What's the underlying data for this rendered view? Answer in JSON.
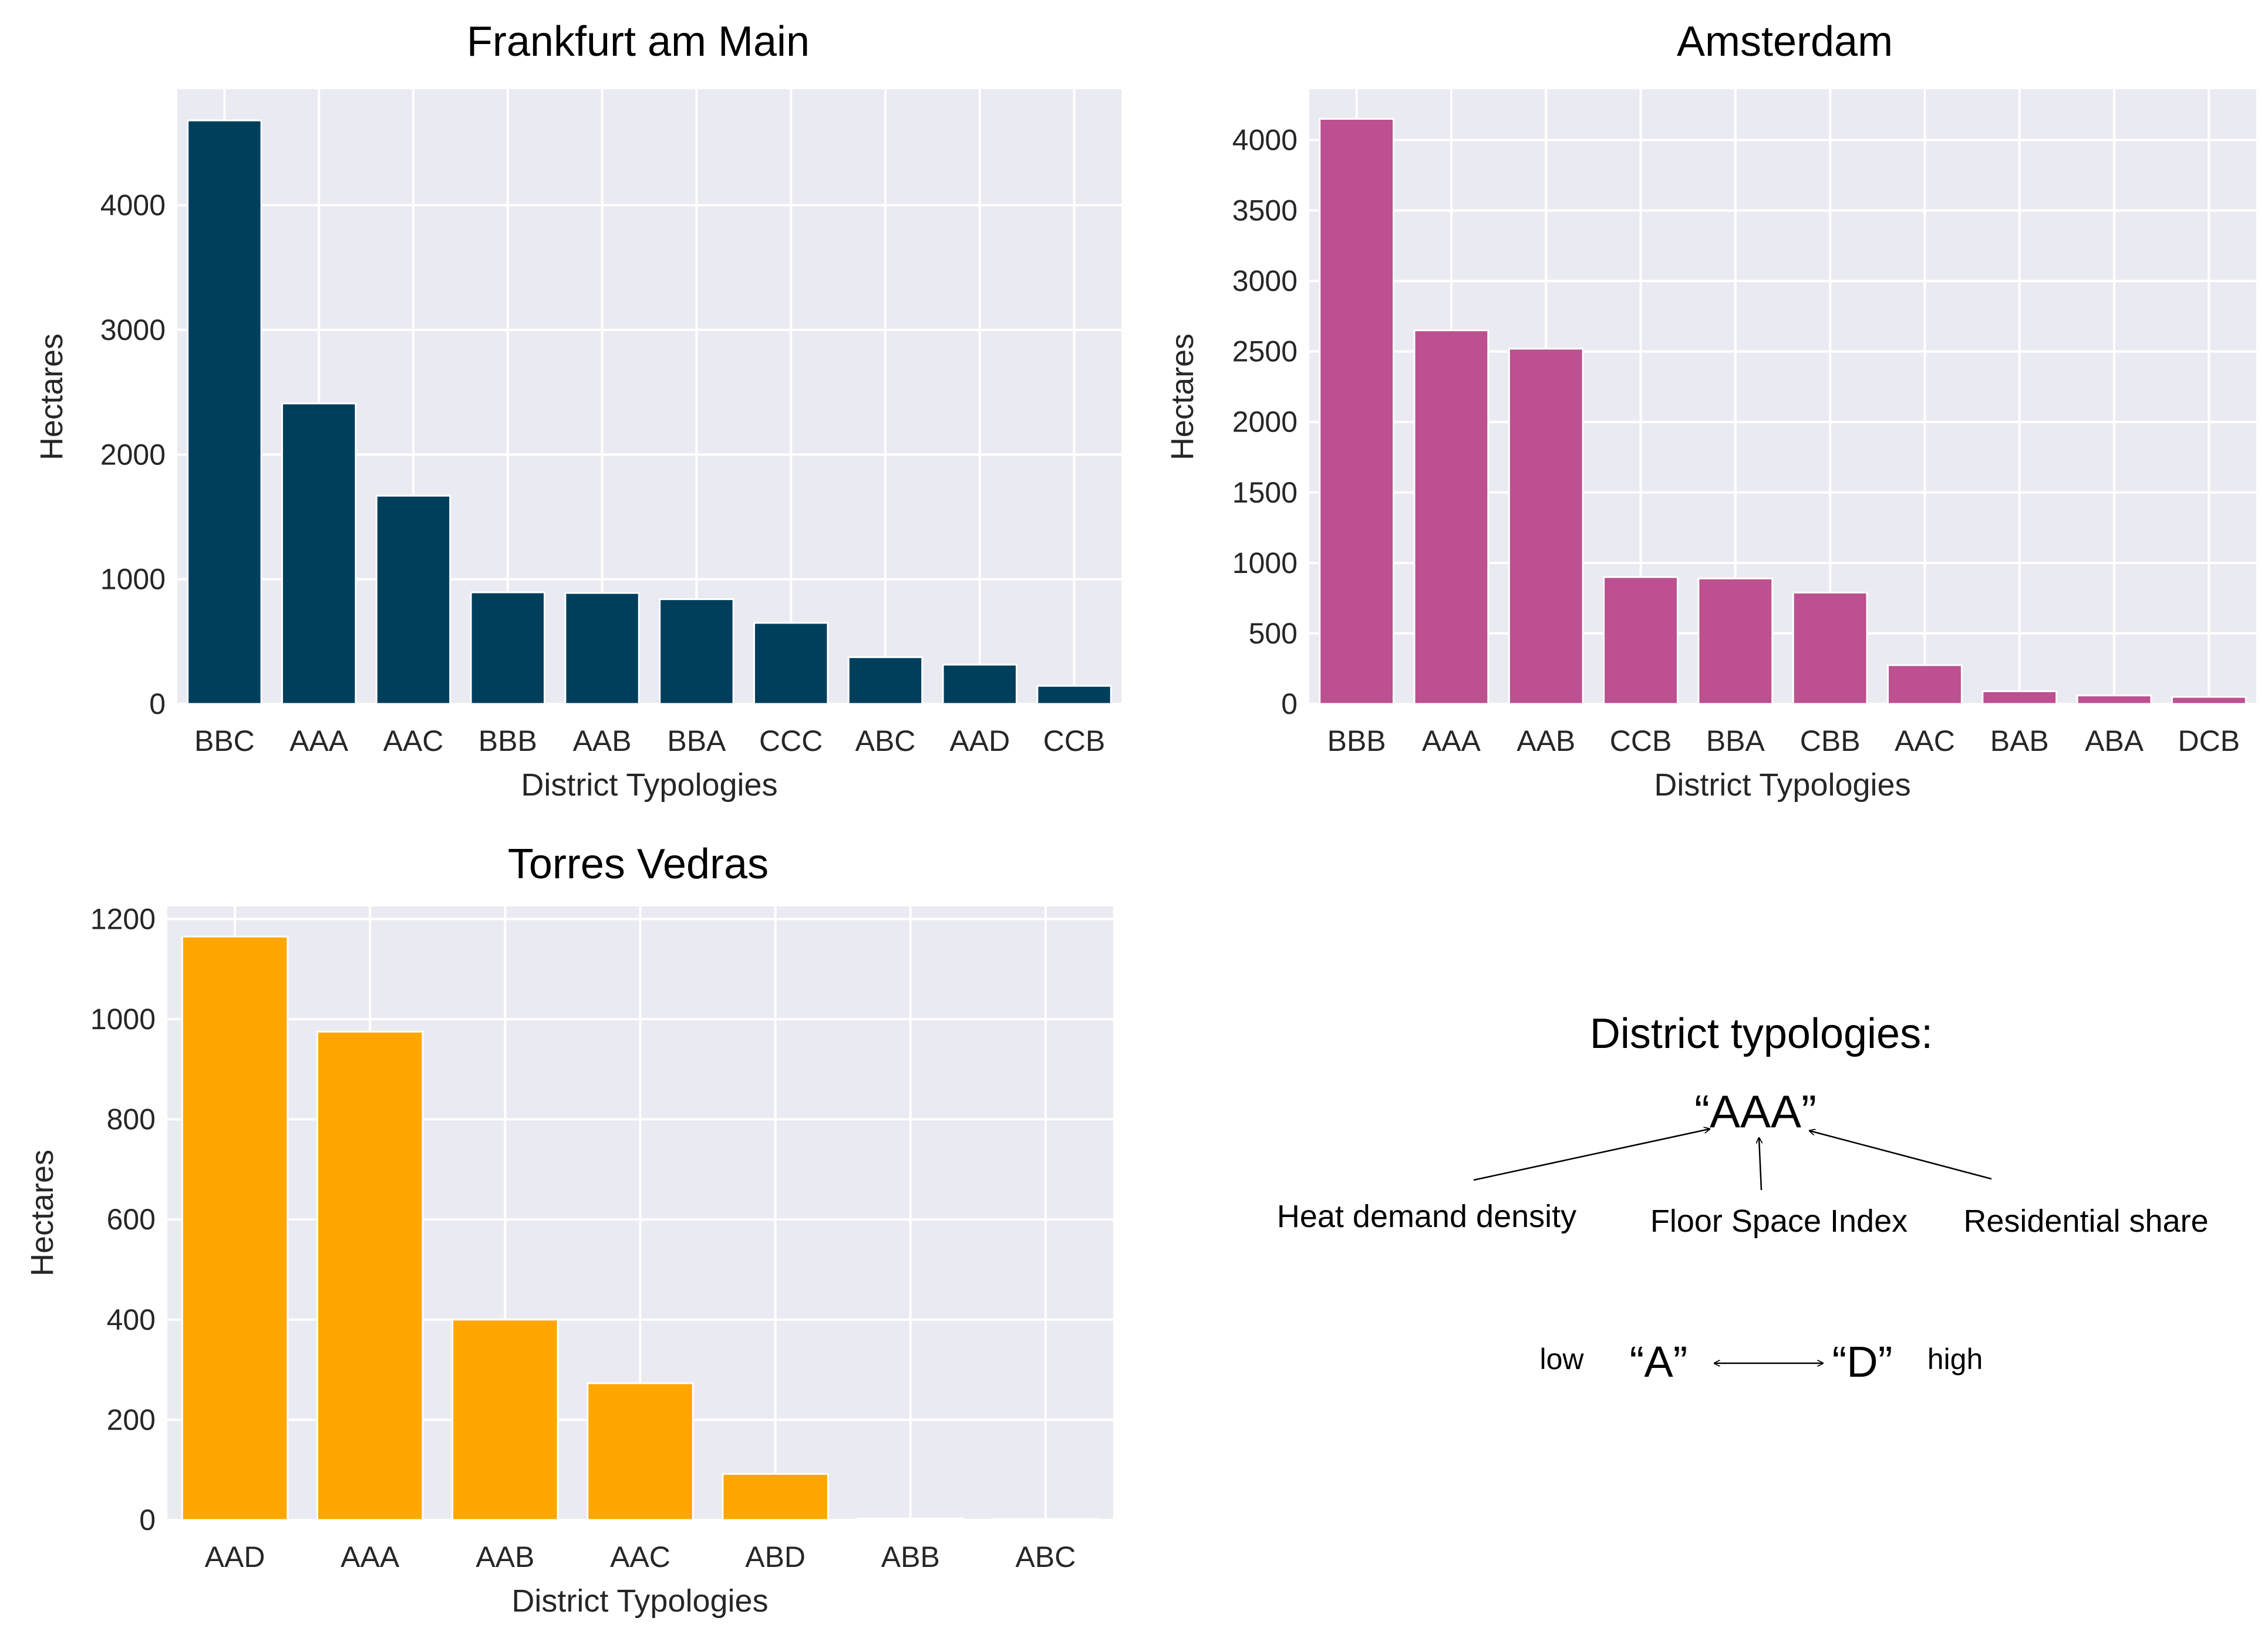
{
  "chart_data": [
    {
      "type": "bar",
      "title": "Frankfurt am Main",
      "xlabel": "District Typologies",
      "ylabel": "Hectares",
      "categories": [
        "BBC",
        "AAA",
        "AAC",
        "BBB",
        "AAB",
        "BBA",
        "CCC",
        "ABC",
        "AAD",
        "CCB"
      ],
      "values": [
        4680,
        2410,
        1670,
        895,
        890,
        840,
        650,
        375,
        315,
        145
      ],
      "ylim": [
        0,
        4930
      ],
      "yticks": [
        0,
        1000,
        2000,
        3000,
        4000
      ],
      "color": "#003f5c",
      "grid": true
    },
    {
      "type": "bar",
      "title": "Amsterdam",
      "xlabel": "District Typologies",
      "ylabel": "Hectares",
      "categories": [
        "BBB",
        "AAA",
        "AAB",
        "CCB",
        "BBA",
        "CBB",
        "AAC",
        "BAB",
        "ABA",
        "DCB"
      ],
      "values": [
        4150,
        2650,
        2520,
        900,
        890,
        790,
        275,
        90,
        60,
        50
      ],
      "ylim": [
        0,
        4360
      ],
      "yticks": [
        0,
        500,
        1000,
        1500,
        2000,
        2500,
        3000,
        3500,
        4000
      ],
      "color": "#bc5090",
      "grid": true
    },
    {
      "type": "bar",
      "title": "Torres Vedras",
      "xlabel": "District Typologies",
      "ylabel": "Hectares",
      "categories": [
        "AAD",
        "AAA",
        "AAB",
        "AAC",
        "ABD",
        "ABB",
        "ABC"
      ],
      "values": [
        1165,
        975,
        400,
        273,
        92,
        3,
        2
      ],
      "ylim": [
        0,
        1225
      ],
      "yticks": [
        0,
        200,
        400,
        600,
        800,
        1000,
        1200
      ],
      "color": "#ffa600",
      "grid": true
    }
  ],
  "legend": {
    "title": "District typologies:",
    "code": "“AAA”",
    "components": [
      "Heat demand density",
      "Floor Space Index",
      "Residential share"
    ],
    "scale": {
      "low": "low",
      "low_letter": "“A”",
      "high_letter": "“D”",
      "high": "high"
    }
  }
}
